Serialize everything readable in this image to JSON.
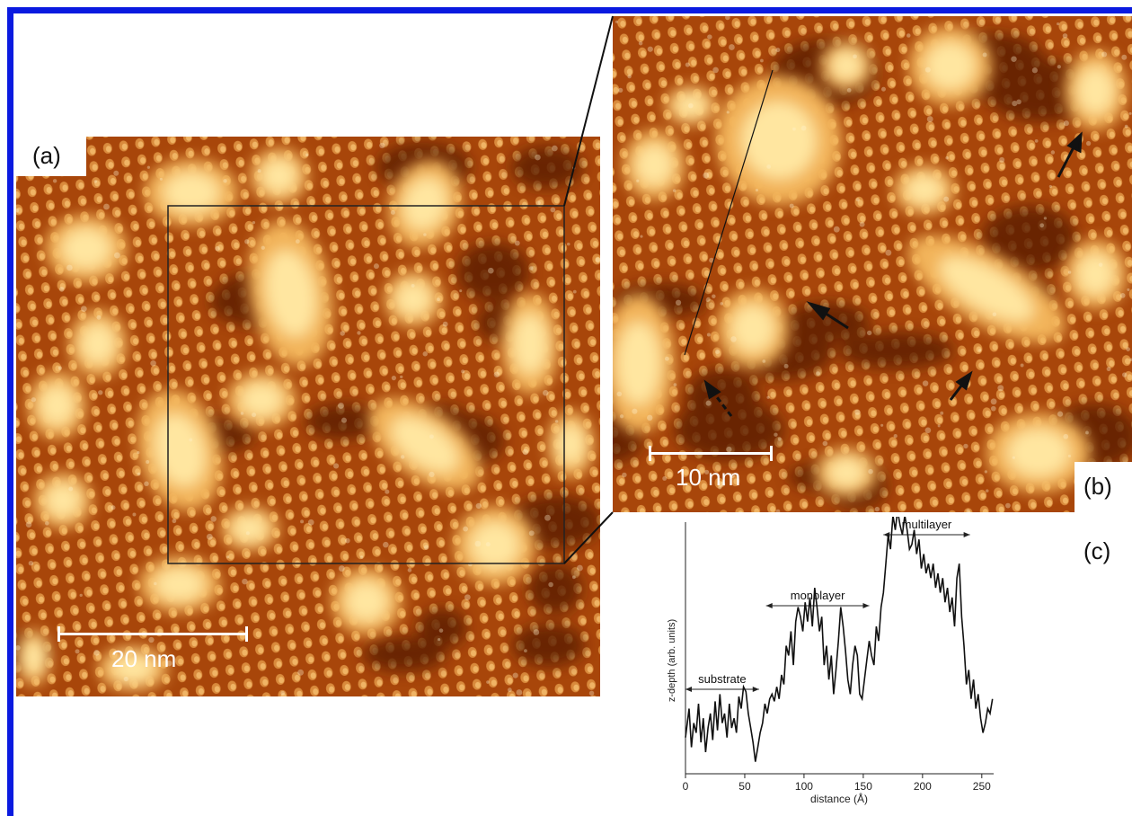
{
  "panels": {
    "a": {
      "label": "(a)",
      "scale_label": "20 nm"
    },
    "b": {
      "label": "(b)",
      "scale_label": "10 nm"
    },
    "c": {
      "label": "(c)"
    }
  },
  "colors": {
    "border": "#0a1ae0",
    "stm_dark": "#5a1d00",
    "stm_mid": "#a8460a",
    "stm_bright": "#ffe6a0"
  },
  "chart_data": {
    "type": "line",
    "xlabel": "distance (Å)",
    "ylabel": "z-depth (arb. units)",
    "xlim": [
      0,
      260
    ],
    "ylim": [
      0,
      100
    ],
    "xticks": [
      "0",
      "50",
      "100",
      "150",
      "200",
      "250"
    ],
    "annotations": [
      {
        "text": "substrate",
        "x_start": 0,
        "x_end": 62
      },
      {
        "text": "monolayer",
        "x_start": 68,
        "x_end": 155
      },
      {
        "text": "multilayer",
        "x_start": 167,
        "x_end": 240
      }
    ],
    "series": [
      {
        "x": [
          0,
          3,
          5,
          7,
          9,
          11,
          13,
          15,
          17,
          19,
          21,
          23,
          25,
          27,
          29,
          31,
          33,
          35,
          37,
          39,
          41,
          43,
          45,
          47,
          49,
          51,
          53,
          55,
          57,
          59,
          61,
          63,
          65,
          67,
          69,
          71,
          73,
          75,
          77,
          79,
          81,
          83,
          85,
          87,
          89,
          91,
          93,
          95,
          97,
          99,
          101,
          103,
          105,
          107,
          109,
          111,
          113,
          115,
          117,
          119,
          121,
          123,
          125,
          127,
          129,
          131,
          133,
          135,
          137,
          139,
          141,
          143,
          145,
          147,
          149,
          151,
          153,
          155,
          157,
          159,
          161,
          163,
          165,
          167,
          169,
          171,
          173,
          175,
          177,
          179,
          181,
          183,
          185,
          187,
          189,
          191,
          193,
          195,
          197,
          199,
          201,
          203,
          205,
          207,
          209,
          211,
          213,
          215,
          217,
          219,
          221,
          223,
          225,
          227,
          229,
          231,
          233,
          235,
          237,
          239,
          241,
          243,
          245,
          247,
          249,
          251,
          253,
          255,
          257,
          259
        ],
        "y": [
          12,
          24,
          8,
          18,
          14,
          26,
          10,
          20,
          6,
          16,
          22,
          11,
          27,
          15,
          30,
          18,
          22,
          12,
          26,
          16,
          20,
          14,
          29,
          24,
          33,
          31,
          22,
          16,
          10,
          2,
          8,
          14,
          18,
          26,
          22,
          28,
          30,
          27,
          33,
          28,
          38,
          34,
          50,
          46,
          56,
          42,
          60,
          66,
          62,
          56,
          68,
          60,
          70,
          58,
          74,
          66,
          56,
          62,
          42,
          50,
          36,
          46,
          30,
          40,
          52,
          66,
          58,
          48,
          36,
          30,
          42,
          50,
          46,
          30,
          28,
          36,
          44,
          52,
          46,
          42,
          58,
          52,
          66,
          72,
          84,
          96,
          90,
          104,
          98,
          106,
          100,
          96,
          104,
          98,
          90,
          92,
          98,
          88,
          94,
          82,
          88,
          80,
          84,
          78,
          84,
          74,
          80,
          72,
          78,
          68,
          74,
          64,
          70,
          58,
          78,
          84,
          62,
          50,
          34,
          40,
          28,
          36,
          24,
          30,
          20,
          14,
          18,
          24,
          22,
          28
        ]
      }
    ]
  }
}
